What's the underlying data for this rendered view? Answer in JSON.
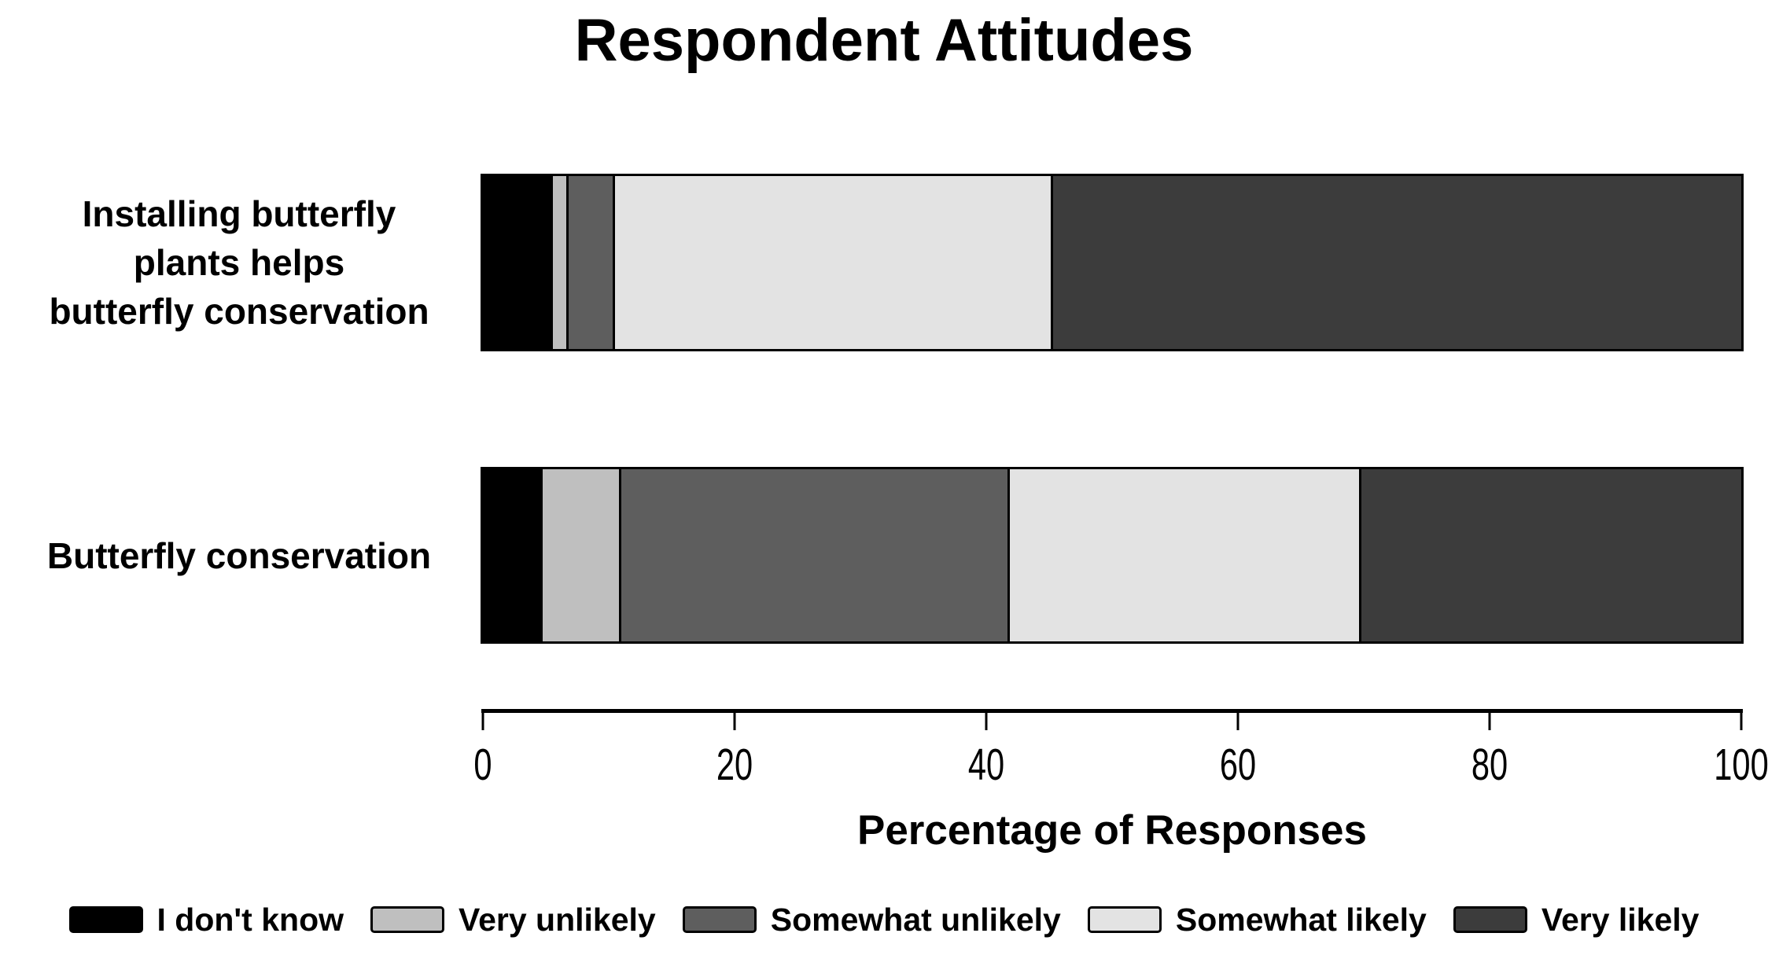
{
  "title": "Respondent Attitudes",
  "chart_data": {
    "type": "bar",
    "orientation": "horizontal_stacked",
    "title": "Respondent Attitudes",
    "xlabel": "Percentage of Responses",
    "xlim": [
      0,
      100
    ],
    "x_ticks": [
      0,
      20,
      40,
      60,
      80,
      100
    ],
    "grid": false,
    "legend_position": "bottom",
    "categories": [
      "Installing butterfly plants helps butterfly conservation",
      "Butterfly conservation"
    ],
    "category_label_lines": [
      [
        "Installing butterfly",
        "plants helps",
        "butterfly conservation"
      ],
      [
        "Butterfly conservation"
      ]
    ],
    "series": [
      {
        "name": "I don't know",
        "color": "#000000",
        "values": [
          5.4,
          4.6
        ]
      },
      {
        "name": "Very unlikely",
        "color": "#bfbfbf",
        "values": [
          1.1,
          6.1
        ]
      },
      {
        "name": "Somewhat unlikely",
        "color": "#5e5e5e",
        "values": [
          3.5,
          30.9
        ]
      },
      {
        "name": "Somewhat likely",
        "color": "#e3e3e3",
        "values": [
          34.9,
          28.0
        ]
      },
      {
        "name": "Very likely",
        "color": "#3c3c3c",
        "values": [
          55.1,
          30.4
        ]
      }
    ]
  }
}
